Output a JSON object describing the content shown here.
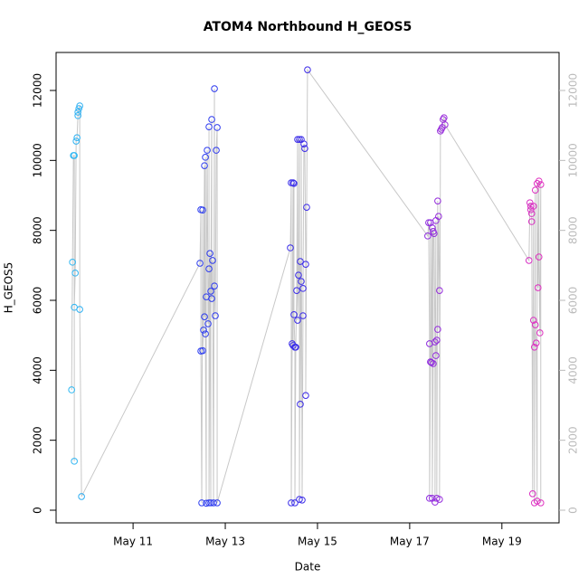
{
  "chart_data": {
    "type": "scatter",
    "title": "ATOM4 Northbound H_GEOS5",
    "x_label": "Date",
    "y_label": "H_GEOS5",
    "x": [
      9.667,
      9.686,
      9.706,
      9.725,
      9.725,
      9.725,
      9.745,
      9.765,
      9.784,
      9.804,
      9.804,
      9.824,
      9.843,
      9.843,
      9.882,
      12.451,
      12.471,
      12.471,
      12.49,
      12.51,
      12.51,
      12.529,
      12.549,
      12.549,
      12.569,
      12.569,
      12.588,
      12.588,
      12.608,
      12.627,
      12.647,
      12.647,
      12.647,
      12.667,
      12.686,
      12.686,
      12.706,
      12.706,
      12.725,
      12.745,
      12.765,
      12.765,
      12.784,
      12.804,
      12.824,
      12.824,
      14.412,
      14.431,
      14.431,
      14.451,
      14.471,
      14.471,
      14.49,
      14.49,
      14.51,
      14.51,
      14.529,
      14.549,
      14.569,
      14.569,
      14.588,
      14.608,
      14.608,
      14.627,
      14.627,
      14.647,
      14.647,
      14.667,
      14.686,
      14.686,
      14.706,
      14.725,
      14.745,
      14.745,
      14.765,
      14.784,
      17.392,
      17.412,
      17.431,
      17.431,
      17.451,
      17.451,
      17.471,
      17.49,
      17.49,
      17.51,
      17.51,
      17.529,
      17.549,
      17.549,
      17.569,
      17.569,
      17.588,
      17.588,
      17.608,
      17.608,
      17.627,
      17.647,
      17.647,
      17.667,
      17.686,
      17.706,
      17.725,
      17.745,
      17.765,
      19.588,
      19.608,
      19.627,
      19.627,
      19.647,
      19.647,
      19.667,
      19.686,
      19.686,
      19.706,
      19.706,
      19.725,
      19.725,
      19.745,
      19.765,
      19.765,
      19.784,
      19.804,
      19.804,
      19.824,
      19.843,
      19.843
    ],
    "values": [
      3440,
      7090,
      10140,
      10140,
      1400,
      5800,
      6780,
      10550,
      10650,
      11280,
      11380,
      11480,
      11560,
      5740,
      390,
      7060,
      8590,
      4550,
      210,
      8580,
      4560,
      5150,
      9850,
      5530,
      10090,
      5040,
      200,
      6100,
      10290,
      5330,
      6900,
      10960,
      210,
      7340,
      210,
      6260,
      11170,
      6050,
      7140,
      210,
      12050,
      6410,
      5560,
      10290,
      10940,
      210,
      7500,
      9360,
      210,
      4760,
      9360,
      4710,
      9340,
      5590,
      4660,
      210,
      4660,
      6280,
      10600,
      5430,
      6720,
      10600,
      310,
      7110,
      3030,
      6540,
      10600,
      290,
      5560,
      6340,
      10470,
      10340,
      7030,
      3280,
      8660,
      12590,
      7840,
      8220,
      4760,
      340,
      4240,
      8220,
      4220,
      8070,
      340,
      4190,
      7970,
      7910,
      4810,
      230,
      8280,
      4420,
      4860,
      340,
      8840,
      5170,
      8400,
      6280,
      310,
      10840,
      10890,
      10940,
      11170,
      11220,
      11020,
      7140,
      8790,
      8690,
      8590,
      8480,
      8250,
      470,
      8690,
      5430,
      4660,
      210,
      9150,
      5300,
      4780,
      260,
      9340,
      6360,
      9410,
      7240,
      5070,
      9310,
      210
    ],
    "colormap": [
      "#2fb8f2",
      "#2a3ff0",
      "#3b2ae8",
      "#8a2be0",
      "#e030c0"
    ],
    "line_color": "#c8c8c8",
    "xlim": [
      9.33,
      20.24
    ],
    "xticks": [
      {
        "value": 11,
        "label": "May 11"
      },
      {
        "value": 13,
        "label": "May 13"
      },
      {
        "value": 15,
        "label": "May 15"
      },
      {
        "value": 17,
        "label": "May 17"
      },
      {
        "value": 19,
        "label": "May 19"
      }
    ],
    "ylim": [
      -362,
      13086
    ],
    "yticks": [
      0,
      2000,
      4000,
      6000,
      8000,
      10000,
      12000
    ],
    "y2lim": [
      -362,
      13086
    ],
    "y2ticks": [
      0,
      2000,
      4000,
      6000,
      8000,
      10000,
      12000
    ],
    "grid": false
  }
}
